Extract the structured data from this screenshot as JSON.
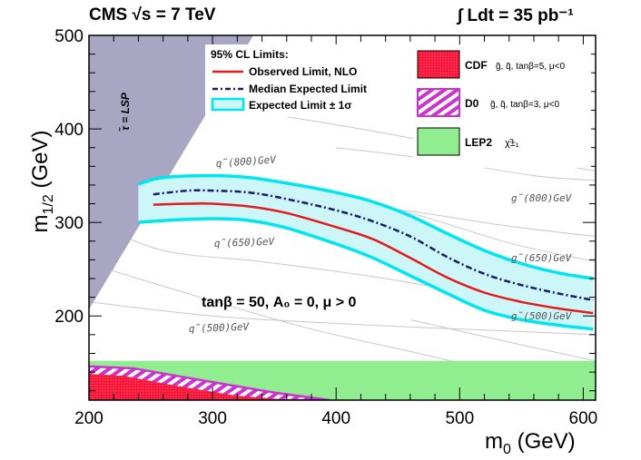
{
  "header": {
    "left": "CMS  √s = 7 TeV",
    "right": "∫ Ldt = 35 pb⁻¹"
  },
  "chart_data": {
    "type": "line",
    "xlabel": "m₀ (GeV)",
    "ylabel": "m₁/₂ (GeV)",
    "xlim": [
      200,
      610
    ],
    "ylim": [
      110,
      500
    ],
    "xticks": [
      "200",
      "300",
      "400",
      "500",
      "600"
    ],
    "yticks": [
      "200",
      "300",
      "400",
      "500"
    ],
    "legend": {
      "title": "95% CL  Limits:",
      "entries": [
        "Observed Limit, NLO",
        "Median Expected Limit",
        "Expected Limit ± 1σ"
      ]
    },
    "series": [
      {
        "name": "Observed Limit, NLO",
        "color": "#e41a1c",
        "x": [
          252,
          280,
          300,
          330,
          360,
          400,
          430,
          460,
          490,
          520,
          550,
          580,
          608
        ],
        "y": [
          319,
          320,
          320,
          317,
          310,
          295,
          282,
          262,
          241,
          225,
          215,
          208,
          203
        ]
      },
      {
        "name": "Median Expected Limit",
        "color": "#1a1a6e",
        "x": [
          252,
          280,
          300,
          330,
          360,
          400,
          430,
          460,
          490,
          520,
          550,
          580,
          608
        ],
        "y": [
          330,
          334,
          334,
          332,
          325,
          313,
          301,
          285,
          263,
          245,
          233,
          224,
          217
        ]
      },
      {
        "name": "Expected Limit ± 1σ",
        "color": "#00e5ee",
        "x": [
          240,
          260,
          300,
          330,
          360,
          400,
          430,
          460,
          490,
          520,
          550,
          580,
          608
        ],
        "upper": [
          341,
          348,
          350,
          348,
          342,
          332,
          322,
          307,
          288,
          270,
          256,
          246,
          240
        ],
        "lower": [
          300,
          302,
          304,
          302,
          294,
          277,
          262,
          243,
          224,
          206,
          196,
          190,
          186
        ]
      }
    ],
    "excluded_regions": [
      {
        "name": "τ̃ = LSP",
        "color": "#a8a6c2",
        "x": [
          200,
          200,
          333,
          200
        ],
        "y": [
          207,
          500,
          500,
          207
        ]
      },
      {
        "name": "LEP2",
        "color": "#90ee90",
        "ymin": 110,
        "ymax": 152
      },
      {
        "name": "D0",
        "color": "#cc33cc",
        "x": [
          200,
          200,
          236,
          288,
          350,
          395
        ],
        "y": [
          110,
          146,
          144,
          132,
          118,
          110
        ]
      },
      {
        "name": "CDF",
        "color": "#ff2244",
        "x": [
          200,
          200,
          228,
          272,
          318,
          364
        ],
        "y": [
          110,
          138,
          136,
          125,
          115,
          110
        ]
      }
    ],
    "contour_labels": [
      "q̃(800)GeV",
      "g̃(800)GeV",
      "q̃(650)GeV",
      "g̃(650)GeV",
      "q̃(500)GeV",
      "g̃(500)GeV"
    ],
    "annotations": {
      "stau": "τ̃ = LSP",
      "params": "tanβ = 50, A₀ = 0, μ > 0"
    },
    "side_legend": [
      {
        "label": "CDF",
        "detail": "g̃, q̃, tanβ=5, μ<0",
        "color": "#ff2244"
      },
      {
        "label": "D0",
        "detail": "g̃, q̃, tanβ=3, μ<0",
        "color": "#cc33cc"
      },
      {
        "label": "LEP2",
        "detail": "χ̃±₁",
        "color": "#90ee90"
      }
    ]
  }
}
